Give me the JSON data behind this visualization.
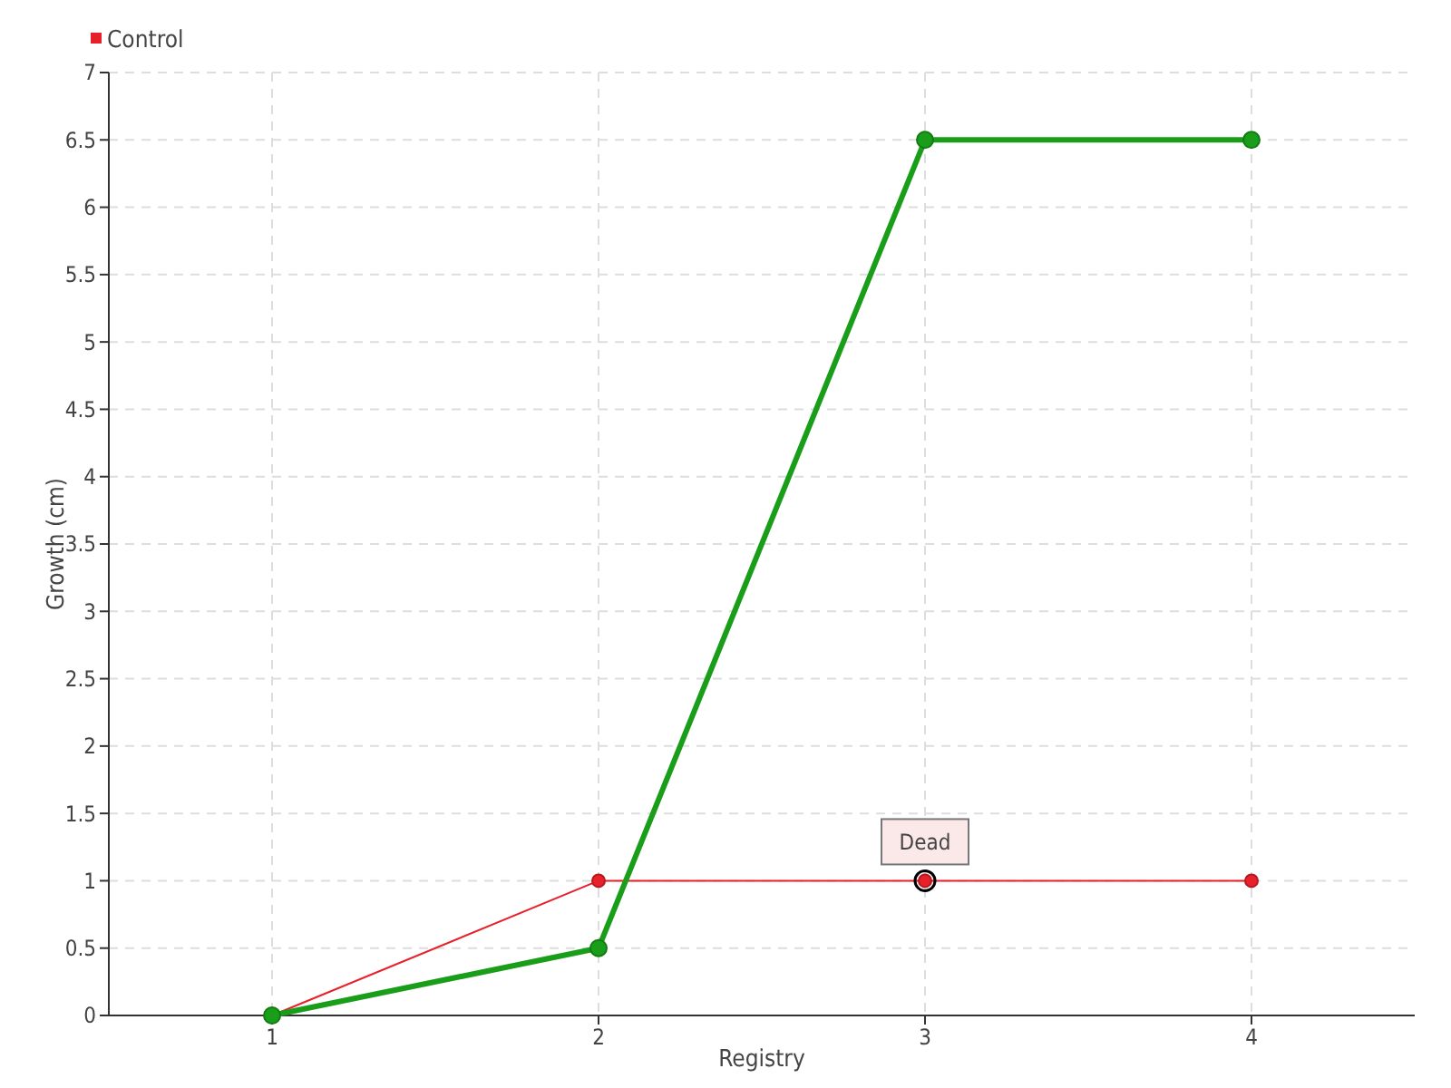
{
  "chart_data": {
    "type": "line",
    "xlabel": "Registry",
    "ylabel": "Growth (cm)",
    "x": [
      1,
      2,
      3,
      4
    ],
    "xlim": [
      0.5,
      4.5
    ],
    "xticks": [
      1,
      2,
      3,
      4
    ],
    "ylim": [
      0,
      7
    ],
    "yticks": [
      0,
      0.5,
      1,
      1.5,
      2,
      2.5,
      3,
      3.5,
      4,
      4.5,
      5,
      5.5,
      6,
      6.5,
      7
    ],
    "series": [
      {
        "color": "#1a9e1a",
        "values": [
          0,
          0.5,
          6.5,
          6.5
        ]
      },
      {
        "name": "Control",
        "color": "#e8202a",
        "values": [
          0,
          1,
          1,
          1
        ]
      }
    ],
    "annotations": [
      {
        "text": "Dead",
        "x": 3,
        "y": 1
      }
    ],
    "grid": true,
    "legend": "top left",
    "marker": "circle",
    "line_style": "solid"
  }
}
